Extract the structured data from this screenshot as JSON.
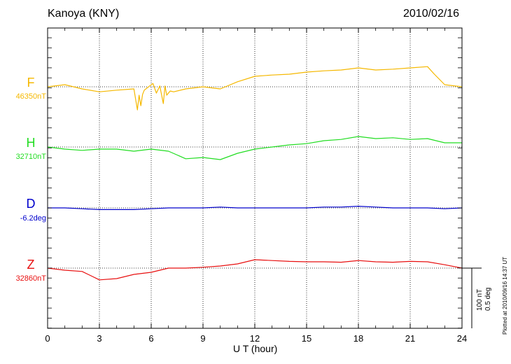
{
  "header": {
    "station": "Kanoya (KNY)",
    "date": "2010/02/16"
  },
  "footer": {
    "plotted": "Plotted at 2010/09/16 14:37 UT"
  },
  "scale": {
    "nt": "100 nT",
    "deg": "0.5 deg"
  },
  "components": [
    {
      "name": "F",
      "baseline": "46350nT",
      "color": "#f5b800"
    },
    {
      "name": "H",
      "baseline": "32710nT",
      "color": "#22dd22"
    },
    {
      "name": "D",
      "baseline": "-6.2deg",
      "color": "#0000cc"
    },
    {
      "name": "Z",
      "baseline": "32860nT",
      "color": "#e81010"
    }
  ],
  "chart_data": {
    "type": "line",
    "title": "Kanoya (KNY)",
    "subtitle": "2010/02/16",
    "xlabel": "U T (hour)",
    "xlim": [
      0,
      24
    ],
    "xticks": [
      "0",
      "3",
      "6",
      "9",
      "12",
      "15",
      "18",
      "21",
      "24"
    ],
    "grid": true,
    "series": [
      {
        "name": "F",
        "baseline": "46350nT",
        "units": "nT",
        "x": [
          0,
          1,
          2,
          3,
          4,
          5,
          5.2,
          5.3,
          5.4,
          5.5,
          5.6,
          6.1,
          6.3,
          6.5,
          6.7,
          6.8,
          6.9,
          7.1,
          7.3,
          8,
          9,
          10,
          11,
          12,
          13,
          14,
          15,
          16,
          17,
          18,
          19,
          20,
          21,
          22,
          22.4,
          23,
          24
        ],
        "y": [
          0,
          5,
          -5,
          -12,
          -8,
          -5,
          -55,
          -20,
          -45,
          -18,
          -8,
          8,
          -15,
          2,
          -40,
          2,
          -20,
          -10,
          -12,
          -5,
          0,
          -5,
          12,
          25,
          28,
          30,
          35,
          38,
          40,
          45,
          40,
          42,
          45,
          48,
          30,
          5,
          0
        ]
      },
      {
        "name": "H",
        "baseline": "32710nT",
        "units": "nT",
        "x": [
          0,
          1,
          2,
          3,
          4,
          5,
          6,
          7,
          8,
          9,
          10,
          11,
          12,
          13,
          14,
          15,
          16,
          17,
          18,
          19,
          20,
          21,
          22,
          23,
          24
        ],
        "y": [
          0,
          -5,
          -8,
          -5,
          -5,
          -10,
          -5,
          -10,
          -28,
          -25,
          -30,
          -15,
          -5,
          0,
          5,
          8,
          15,
          18,
          25,
          20,
          22,
          18,
          20,
          10,
          10
        ]
      },
      {
        "name": "D",
        "baseline": "-6.2deg",
        "units": "deg",
        "x": [
          0,
          1,
          2,
          3,
          4,
          5,
          6,
          7,
          8,
          9,
          10,
          11,
          12,
          13,
          14,
          15,
          16,
          17,
          18,
          19,
          20,
          21,
          22,
          23,
          24
        ],
        "y": [
          0,
          0,
          -0.01,
          -0.02,
          -0.02,
          -0.02,
          -0.01,
          0,
          0,
          0,
          0.01,
          0,
          0,
          0,
          0,
          0,
          0.01,
          0.01,
          0.02,
          0.01,
          0,
          0,
          0,
          -0.01,
          0
        ]
      },
      {
        "name": "Z",
        "baseline": "32860nT",
        "units": "nT",
        "x": [
          0,
          1,
          2,
          3,
          4,
          5,
          6,
          7,
          8,
          9,
          10,
          11,
          12,
          13,
          14,
          15,
          16,
          17,
          18,
          19,
          20,
          21,
          22,
          23,
          24
        ],
        "y": [
          0,
          -5,
          -8,
          -28,
          -25,
          -15,
          -10,
          0,
          0,
          2,
          5,
          10,
          20,
          18,
          16,
          15,
          15,
          14,
          18,
          15,
          14,
          16,
          15,
          8,
          0
        ]
      }
    ]
  }
}
